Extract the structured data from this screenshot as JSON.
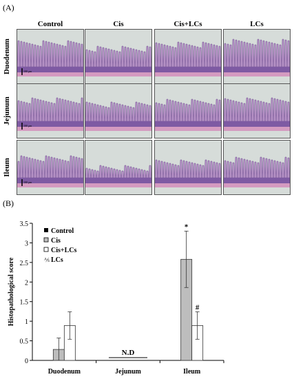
{
  "panel_a_label": "(A)",
  "panel_b_label": "(B)",
  "micrograph_grid": {
    "columns": [
      "Control",
      "Cis",
      "Cis+LCs",
      "LCs"
    ],
    "rows": [
      "Duodenum",
      "Jejunum",
      "Ileum"
    ],
    "scale_bar_label": "100 μm"
  },
  "colors": {
    "tissue_background": "#d6dcd9",
    "mucosa": "#b490c4",
    "crypt_layer": "#7e5aa3",
    "muscularis": "#d49ac0",
    "bar_cis": "#bdbdbd",
    "bar_cis_lcs": "#ffffff",
    "axis": "#000000"
  },
  "chart_data": {
    "type": "bar",
    "categories": [
      "Duodenum",
      "Jejunum",
      "Ileum"
    ],
    "series": [
      {
        "name": "Control",
        "values": [
          0,
          0,
          0
        ],
        "errors": [
          0,
          0,
          0
        ]
      },
      {
        "name": "Cis",
        "values": [
          0.28,
          0,
          2.58
        ],
        "errors": [
          0.29,
          0,
          0.72
        ]
      },
      {
        "name": "Cis+LCs",
        "values": [
          0.89,
          0,
          0.89
        ],
        "errors": [
          0.35,
          0,
          0.35
        ]
      },
      {
        "name": "LCs",
        "values": [
          0,
          0,
          0
        ],
        "errors": [
          0,
          0,
          0
        ]
      }
    ],
    "ylabel": "Histopathological score",
    "xlabel": "",
    "ylim": [
      0,
      3.5
    ],
    "yticks": [
      "0",
      "0.5",
      "1",
      "1.5",
      "2",
      "2.5",
      "3",
      "3.5"
    ],
    "annotations": [
      {
        "text": "N.D",
        "category": "Jejunum"
      },
      {
        "text": "*",
        "category": "Ileum",
        "series": "Cis"
      },
      {
        "text": "#",
        "category": "Ileum",
        "series": "Cis+LCs"
      }
    ],
    "legend": "top-left",
    "grid": false
  }
}
